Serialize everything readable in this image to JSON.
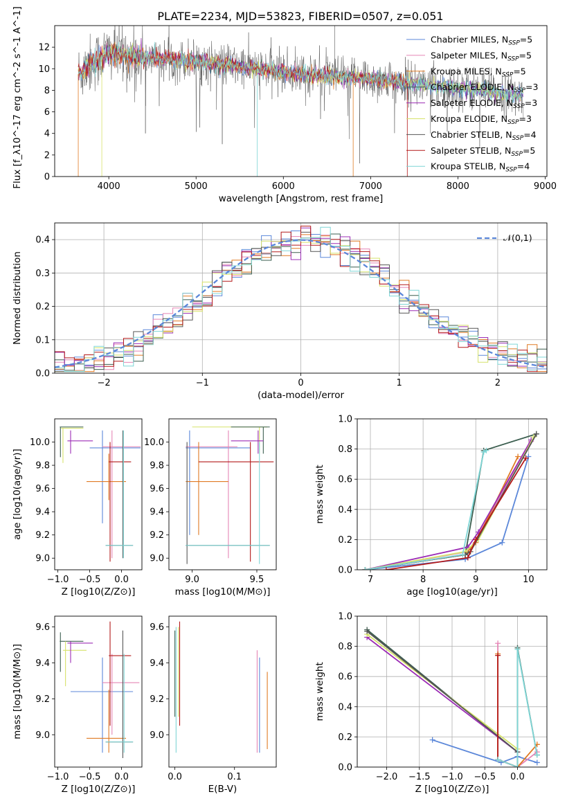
{
  "title": "PLATE=2234, MJD=53823, FIBERID=0507, z=0.051",
  "colors": {
    "Chabrier MILES": "#5b87d9",
    "Salpeter MILES": "#e585b5",
    "Kroupa MILES": "#e07a23",
    "Chabrier ELODIE": "#3b5e4f",
    "Salpeter ELODIE": "#9b2cb5",
    "Kroupa ELODIE": "#d6e26a",
    "Chabrier STELIB": "#555555",
    "Salpeter STELIB": "#b31818",
    "Kroupa STELIB": "#7fd6d6"
  },
  "chart_data": [
    {
      "id": "spectrum",
      "type": "line",
      "xlabel": "wavelength [Angstrom, rest frame]",
      "ylabel": "Flux [f_λ10^-17 erg cm^-2 s^-1 A^-1]",
      "xlim": [
        3380,
        9020
      ],
      "ylim": [
        0,
        14
      ],
      "xticks": [
        4000,
        5000,
        6000,
        7000,
        8000,
        9000
      ],
      "yticks": [
        0,
        2,
        4,
        6,
        8,
        10,
        12
      ],
      "grid": false,
      "legend_position": "right",
      "series": [
        {
          "name": "Chabrier MILES, N_SSP=5",
          "color": "#5b87d9"
        },
        {
          "name": "Salpeter MILES, N_SSP=5",
          "color": "#e585b5"
        },
        {
          "name": "Kroupa MILES, N_SSP=5",
          "color": "#e07a23"
        },
        {
          "name": "Chabrier ELODIE, N_SSP=3",
          "color": "#3b5e4f"
        },
        {
          "name": "Salpeter ELODIE, N_SSP=3",
          "color": "#9b2cb5"
        },
        {
          "name": "Kroupa ELODIE, N_SSP=3",
          "color": "#d6e26a"
        },
        {
          "name": "Chabrier STELIB, N_SSP=4",
          "color": "#555555"
        },
        {
          "name": "Salpeter STELIB, N_SSP=5",
          "color": "#b31818"
        },
        {
          "name": "Kroupa STELIB, N_SSP=4",
          "color": "#7fd6d6"
        }
      ],
      "data_summary": {
        "x": [
          3650,
          3800,
          4000,
          4200,
          4500,
          5000,
          5500,
          6000,
          6500,
          7000,
          7400,
          7500,
          8000,
          8500,
          8700
        ],
        "y": [
          9.5,
          10.5,
          11.5,
          11.2,
          11.0,
          10.7,
          10.2,
          9.7,
          9.3,
          9.0,
          8.7,
          8.6,
          8.2,
          7.7,
          7.5
        ]
      }
    },
    {
      "id": "residual-histogram",
      "type": "line",
      "xlabel": "(data-model)/error",
      "ylabel": "Normed distribution",
      "xlim": [
        -2.5,
        2.5
      ],
      "ylim": [
        0,
        0.45
      ],
      "xticks": [
        -2,
        -1,
        0,
        1,
        2
      ],
      "yticks": [
        0.0,
        0.1,
        0.2,
        0.3,
        0.4
      ],
      "grid": true,
      "legend_position": "top-right",
      "legend": [
        "𝒩(0,1)"
      ],
      "reference": {
        "type": "normal",
        "mean": 0,
        "std": 1,
        "color": "#5b87d9"
      }
    },
    {
      "id": "age-vs-Z",
      "type": "scatter",
      "xlabel": "Z [log10(Z/Z⊙)]",
      "ylabel": "age  [log10(age/yr)]",
      "xlim": [
        -1.05,
        0.32
      ],
      "ylim": [
        8.9,
        10.2
      ],
      "xticks": [
        -1.0,
        -0.5,
        0.0
      ],
      "yticks": [
        9.0,
        9.2,
        9.4,
        9.6,
        9.8,
        10.0
      ],
      "errorbars": [
        {
          "x": -0.85,
          "y": 9.95,
          "xerr": [
            0.3,
            0.3
          ],
          "yerr": [
            0.05,
            0.05
          ],
          "color": "#9b2cb5",
          "note": ""
        }
      ]
    },
    {
      "id": "age-vs-mass",
      "type": "scatter",
      "xlabel": "mass [log10(M/M⊙)]",
      "ylabel": "",
      "xlim": [
        8.82,
        9.65
      ],
      "ylim": [
        8.9,
        10.2
      ],
      "xticks": [
        9.0,
        9.5
      ],
      "yticks": [
        9.0,
        9.2,
        9.4,
        9.6,
        9.8,
        10.0
      ]
    },
    {
      "id": "massweight-vs-age",
      "type": "line",
      "xlabel": "age  [log10(age/yr)]",
      "ylabel": "mass weight",
      "xlim": [
        6.75,
        10.35
      ],
      "ylim": [
        0,
        1
      ],
      "xticks": [
        7,
        8,
        9,
        10
      ],
      "yticks": [
        0.0,
        0.2,
        0.4,
        0.6,
        0.8,
        1.0
      ],
      "grid": true,
      "series": [
        {
          "color": "#5b87d9",
          "x": [
            6.9,
            8.8,
            9.5,
            10.0
          ],
          "y": [
            0.0,
            0.07,
            0.18,
            0.75
          ]
        },
        {
          "color": "#e585b5",
          "x": [
            6.9,
            8.85,
            9.0,
            10.05
          ],
          "y": [
            0.0,
            0.12,
            0.2,
            0.85
          ]
        },
        {
          "color": "#e07a23",
          "x": [
            6.9,
            8.8,
            9.0,
            9.8
          ],
          "y": [
            0.0,
            0.1,
            0.18,
            0.75
          ]
        },
        {
          "color": "#3b5e4f",
          "x": [
            6.9,
            8.8,
            9.15,
            10.15
          ],
          "y": [
            0.0,
            0.1,
            0.79,
            0.9
          ]
        },
        {
          "color": "#9b2cb5",
          "x": [
            6.9,
            8.85,
            9.05,
            10.05
          ],
          "y": [
            0.0,
            0.15,
            0.25,
            0.86
          ]
        },
        {
          "color": "#d6e26a",
          "x": [
            6.9,
            8.8,
            9.05,
            10.1
          ],
          "y": [
            0.0,
            0.12,
            0.2,
            0.88
          ]
        },
        {
          "color": "#555555",
          "x": [
            6.9,
            8.8,
            8.9,
            10.15
          ],
          "y": [
            0.0,
            0.1,
            0.12,
            0.9
          ]
        },
        {
          "color": "#b31818",
          "x": [
            7.3,
            8.85,
            9.0,
            9.95
          ],
          "y": [
            0.0,
            0.08,
            0.2,
            0.74
          ]
        },
        {
          "color": "#7fd6d6",
          "x": [
            6.9,
            8.75,
            9.15,
            9.2
          ],
          "y": [
            0.0,
            0.1,
            0.78,
            0.79
          ]
        }
      ]
    },
    {
      "id": "mass-vs-Z",
      "type": "scatter",
      "xlabel": "Z [log10(Z/Z⊙)]",
      "ylabel": "mass [log10(M/M⊙)]",
      "xlim": [
        -1.05,
        0.32
      ],
      "ylim": [
        8.82,
        9.66
      ],
      "xticks": [
        -1.0,
        -0.5,
        0.0
      ],
      "yticks": [
        9.0,
        9.2,
        9.4,
        9.6
      ]
    },
    {
      "id": "mass-vs-EBV",
      "type": "scatter",
      "xlabel": "E(B-V)",
      "ylabel": "",
      "xlim": [
        -0.01,
        0.17
      ],
      "ylim": [
        8.82,
        9.66
      ],
      "xticks": [
        0.0,
        0.1
      ],
      "yticks": [
        9.0,
        9.2,
        9.4,
        9.6
      ]
    },
    {
      "id": "massweight-vs-Z",
      "type": "line",
      "xlabel": "Z [log10(Z/Z⊙)]",
      "ylabel": "mass weight",
      "xlim": [
        -2.45,
        0.45
      ],
      "ylim": [
        0,
        1
      ],
      "xticks": [
        -2.0,
        -1.5,
        -1.0,
        -0.5,
        0.0
      ],
      "yticks": [
        0.0,
        0.2,
        0.4,
        0.6,
        0.8,
        1.0
      ],
      "grid": true,
      "series": [
        {
          "color": "#5b87d9",
          "x": [
            -1.3,
            -0.25,
            0.0,
            0.3
          ],
          "y": [
            0.18,
            0.03,
            0.07,
            0.03
          ]
        },
        {
          "color": "#e585b5",
          "x": [
            -0.3,
            -0.3,
            0.0,
            0.3
          ],
          "y": [
            0.82,
            0.05,
            0.0,
            0.1
          ]
        },
        {
          "color": "#e07a23",
          "x": [
            -0.3,
            -0.3,
            0.0,
            0.3
          ],
          "y": [
            0.75,
            0.05,
            0.0,
            0.15
          ]
        },
        {
          "color": "#3b5e4f",
          "x": [
            -2.3,
            0.0,
            0.0,
            0.3
          ],
          "y": [
            0.91,
            0.1,
            0.79,
            0.08
          ]
        },
        {
          "color": "#9b2cb5",
          "x": [
            -2.3,
            0.0,
            0.0
          ],
          "y": [
            0.86,
            0.1,
            0.0
          ]
        },
        {
          "color": "#d6e26a",
          "x": [
            -2.3,
            0.0,
            0.0
          ],
          "y": [
            0.88,
            0.12,
            0.0
          ]
        },
        {
          "color": "#555555",
          "x": [
            -2.3,
            0.0,
            0.0
          ],
          "y": [
            0.9,
            0.1,
            0.0
          ]
        },
        {
          "color": "#b31818",
          "x": [
            -0.3,
            -0.3,
            0.0
          ],
          "y": [
            0.74,
            0.05,
            0.0
          ]
        },
        {
          "color": "#7fd6d6",
          "x": [
            -0.3,
            -0.3,
            0.0,
            0.0,
            0.3
          ],
          "y": [
            0.05,
            0.05,
            0.0,
            0.78,
            0.08
          ]
        }
      ]
    }
  ]
}
